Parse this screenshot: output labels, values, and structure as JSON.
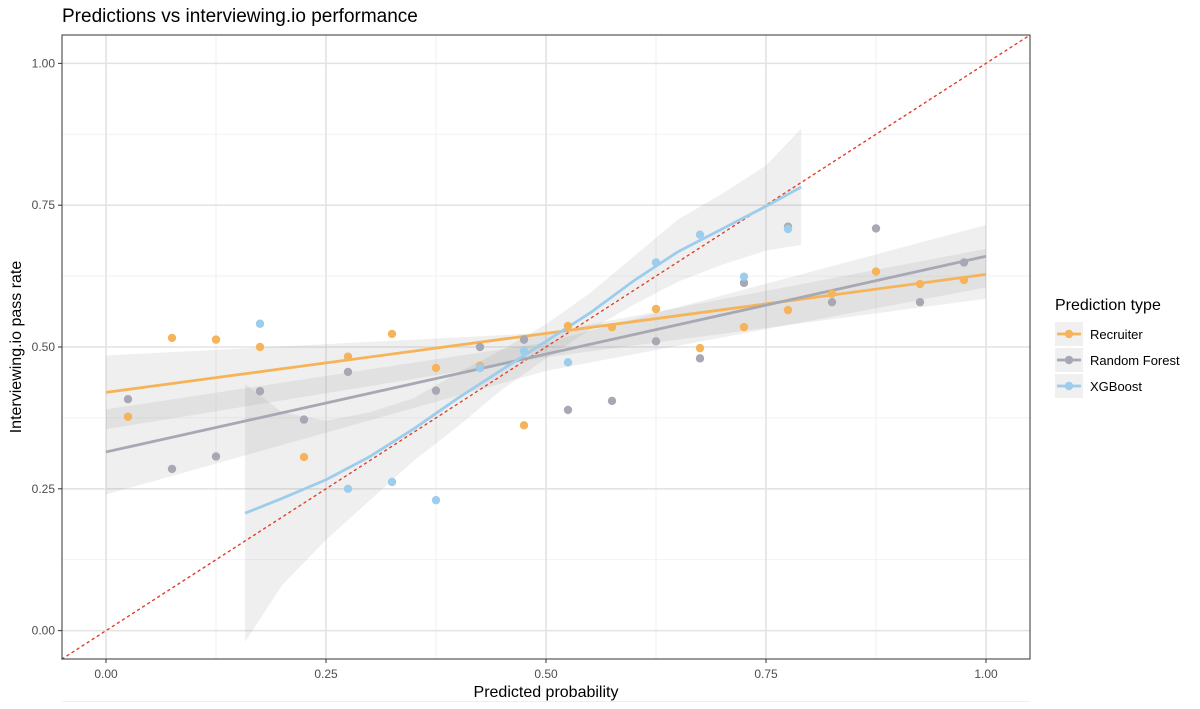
{
  "chart_data": {
    "type": "scatter",
    "title": "Predictions vs interviewing.io performance",
    "xlabel": "Predicted probability",
    "ylabel": "Interviewing.io pass rate",
    "xlim": [
      -0.05,
      1.05
    ],
    "ylim": [
      -0.05,
      1.05
    ],
    "x_ticks": [
      0.0,
      0.25,
      0.5,
      0.75,
      1.0
    ],
    "x_tick_labels": [
      "0.00",
      "0.25",
      "0.50",
      "0.75",
      "1.00"
    ],
    "y_ticks": [
      0.0,
      0.25,
      0.5,
      0.75,
      1.0
    ],
    "y_tick_labels": [
      "0.00",
      "0.25",
      "0.50",
      "0.75",
      "1.00"
    ],
    "grid": true,
    "legend": {
      "title": "Prediction type",
      "position": "right"
    },
    "reference_line": {
      "style": "dotted",
      "color": "#e0402a",
      "slope": 1,
      "intercept": 0
    },
    "series": [
      {
        "name": "Recruiter",
        "color": "#f6b45a",
        "points": [
          [
            0.025,
            0.377
          ],
          [
            0.075,
            0.516
          ],
          [
            0.125,
            0.513
          ],
          [
            0.175,
            0.5
          ],
          [
            0.225,
            0.306
          ],
          [
            0.275,
            0.483
          ],
          [
            0.325,
            0.523
          ],
          [
            0.375,
            0.463
          ],
          [
            0.425,
            0.467
          ],
          [
            0.475,
            0.362
          ],
          [
            0.525,
            0.537
          ],
          [
            0.575,
            0.535
          ],
          [
            0.625,
            0.567
          ],
          [
            0.675,
            0.498
          ],
          [
            0.725,
            0.535
          ],
          [
            0.775,
            0.565
          ],
          [
            0.825,
            0.594
          ],
          [
            0.875,
            0.633
          ],
          [
            0.925,
            0.611
          ],
          [
            0.975,
            0.618
          ]
        ],
        "fit": {
          "x": [
            0.0,
            1.0
          ],
          "y": [
            0.42,
            0.628
          ]
        },
        "band": {
          "x": [
            0.0,
            0.5,
            1.0
          ],
          "lower": [
            0.355,
            0.482,
            0.585
          ],
          "upper": [
            0.485,
            0.525,
            0.673
          ]
        }
      },
      {
        "name": "Random Forest",
        "color": "#a6a9b3",
        "points": [
          [
            0.025,
            0.408
          ],
          [
            0.075,
            0.285
          ],
          [
            0.125,
            0.307
          ],
          [
            0.175,
            0.422
          ],
          [
            0.225,
            0.372
          ],
          [
            0.275,
            0.456
          ],
          [
            0.375,
            0.423
          ],
          [
            0.425,
            0.5
          ],
          [
            0.475,
            0.513
          ],
          [
            0.525,
            0.389
          ],
          [
            0.575,
            0.405
          ],
          [
            0.625,
            0.51
          ],
          [
            0.675,
            0.48
          ],
          [
            0.725,
            0.613
          ],
          [
            0.775,
            0.712
          ],
          [
            0.825,
            0.579
          ],
          [
            0.875,
            0.709
          ],
          [
            0.925,
            0.579
          ],
          [
            0.975,
            0.649
          ]
        ],
        "fit": {
          "x": [
            0.0,
            1.0
          ],
          "y": [
            0.315,
            0.66
          ]
        },
        "band": {
          "x": [
            0.0,
            0.5,
            1.0
          ],
          "lower": [
            0.24,
            0.458,
            0.605
          ],
          "upper": [
            0.39,
            0.508,
            0.715
          ]
        }
      },
      {
        "name": "XGBoost",
        "color": "#9dcdec",
        "points": [
          [
            0.175,
            0.541
          ],
          [
            0.275,
            0.25
          ],
          [
            0.325,
            0.262
          ],
          [
            0.375,
            0.23
          ],
          [
            0.425,
            0.463
          ],
          [
            0.475,
            0.493
          ],
          [
            0.525,
            0.473
          ],
          [
            0.625,
            0.649
          ],
          [
            0.675,
            0.698
          ],
          [
            0.725,
            0.624
          ],
          [
            0.775,
            0.708
          ]
        ],
        "fit": {
          "x": [
            0.158,
            0.2,
            0.25,
            0.3,
            0.35,
            0.4,
            0.45,
            0.5,
            0.55,
            0.6,
            0.65,
            0.7,
            0.75,
            0.79
          ],
          "y": [
            0.207,
            0.233,
            0.266,
            0.307,
            0.356,
            0.41,
            0.46,
            0.51,
            0.56,
            0.617,
            0.668,
            0.708,
            0.748,
            0.782
          ]
        },
        "band": {
          "x": [
            0.158,
            0.2,
            0.25,
            0.3,
            0.35,
            0.4,
            0.45,
            0.5,
            0.55,
            0.6,
            0.65,
            0.7,
            0.75,
            0.79
          ],
          "lower": [
            -0.02,
            0.08,
            0.16,
            0.23,
            0.3,
            0.36,
            0.425,
            0.48,
            0.53,
            0.575,
            0.615,
            0.645,
            0.67,
            0.68
          ],
          "upper": [
            0.435,
            0.385,
            0.37,
            0.385,
            0.41,
            0.455,
            0.495,
            0.54,
            0.595,
            0.66,
            0.725,
            0.77,
            0.82,
            0.885
          ]
        }
      }
    ]
  }
}
